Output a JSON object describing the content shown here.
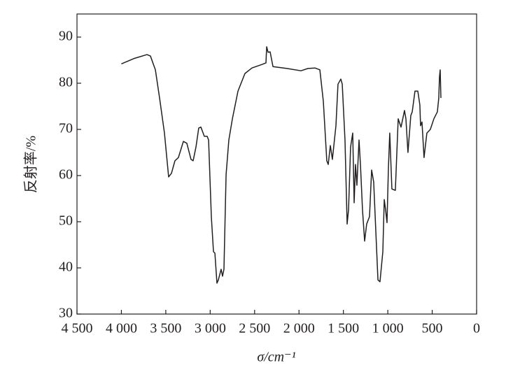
{
  "chart_data": {
    "type": "line",
    "x_label": "σ/cm⁻¹",
    "y_label": "反射率/%",
    "xlim": [
      4500,
      0
    ],
    "ylim": [
      30,
      95
    ],
    "xticks": [
      {
        "value": 4500,
        "label": "4 500"
      },
      {
        "value": 4000,
        "label": "4 000"
      },
      {
        "value": 3500,
        "label": "3 500"
      },
      {
        "value": 3000,
        "label": "3 000"
      },
      {
        "value": 2500,
        "label": "2 500"
      },
      {
        "value": 2000,
        "label": "2 000"
      },
      {
        "value": 1500,
        "label": "1 500"
      },
      {
        "value": 1000,
        "label": "1 000"
      },
      500,
      0
    ],
    "yticks": [
      30,
      40,
      50,
      60,
      70,
      80,
      90
    ],
    "x": [
      4000,
      3851,
      3712,
      3673,
      3617,
      3570,
      3515,
      3468,
      3436,
      3397,
      3358,
      3302,
      3263,
      3216,
      3192,
      3160,
      3129,
      3105,
      3066,
      3034,
      3018,
      2987,
      2963,
      2947,
      2924,
      2908,
      2877,
      2861,
      2845,
      2821,
      2790,
      2750,
      2687,
      2609,
      2530,
      2412,
      2372,
      2364,
      2348,
      2325,
      2293,
      2136,
      1978,
      1899,
      1820,
      1765,
      1726,
      1687,
      1671,
      1647,
      1624,
      1584,
      1561,
      1529,
      1513,
      1482,
      1458,
      1442,
      1419,
      1395,
      1379,
      1364,
      1348,
      1324,
      1308,
      1285,
      1261,
      1238,
      1206,
      1182,
      1159,
      1135,
      1111,
      1088,
      1056,
      1040,
      1025,
      1009,
      993,
      978,
      954,
      915,
      883,
      851,
      812,
      796,
      773,
      741,
      725,
      694,
      662,
      639,
      631,
      615,
      592,
      560,
      521,
      481,
      442,
      426,
      418,
      410,
      402
    ],
    "series": [
      {
        "color": "#231f20",
        "values": [
          84.2,
          85.4,
          86.2,
          85.9,
          82.9,
          76.8,
          69.2,
          59.7,
          60.5,
          63.2,
          63.9,
          67.4,
          67.0,
          63.5,
          63.2,
          66.2,
          70.3,
          70.5,
          68.5,
          68.5,
          67.7,
          51.1,
          43.5,
          43.2,
          36.7,
          37.4,
          39.7,
          38.2,
          39.7,
          60.2,
          67.7,
          72.3,
          78.3,
          82.1,
          83.3,
          84.1,
          84.4,
          87.9,
          86.7,
          86.8,
          83.6,
          83.2,
          82.7,
          83.2,
          83.3,
          82.9,
          76.1,
          63.2,
          62.4,
          66.5,
          63.5,
          70.8,
          79.8,
          80.9,
          79.8,
          67.7,
          49.5,
          52.6,
          66.2,
          69.2,
          54.1,
          62.4,
          57.9,
          67.7,
          62.4,
          52.6,
          45.8,
          49.5,
          51.1,
          61.2,
          58.6,
          48.0,
          37.4,
          37.0,
          43.5,
          54.8,
          52.6,
          49.8,
          61.7,
          69.2,
          57.1,
          56.8,
          72.3,
          70.5,
          74.1,
          72.3,
          65.0,
          73.0,
          73.8,
          78.3,
          78.3,
          75.3,
          70.8,
          71.6,
          63.9,
          69.2,
          70.0,
          72.3,
          73.8,
          76.8,
          81.4,
          82.9,
          76.8
        ]
      }
    ]
  }
}
